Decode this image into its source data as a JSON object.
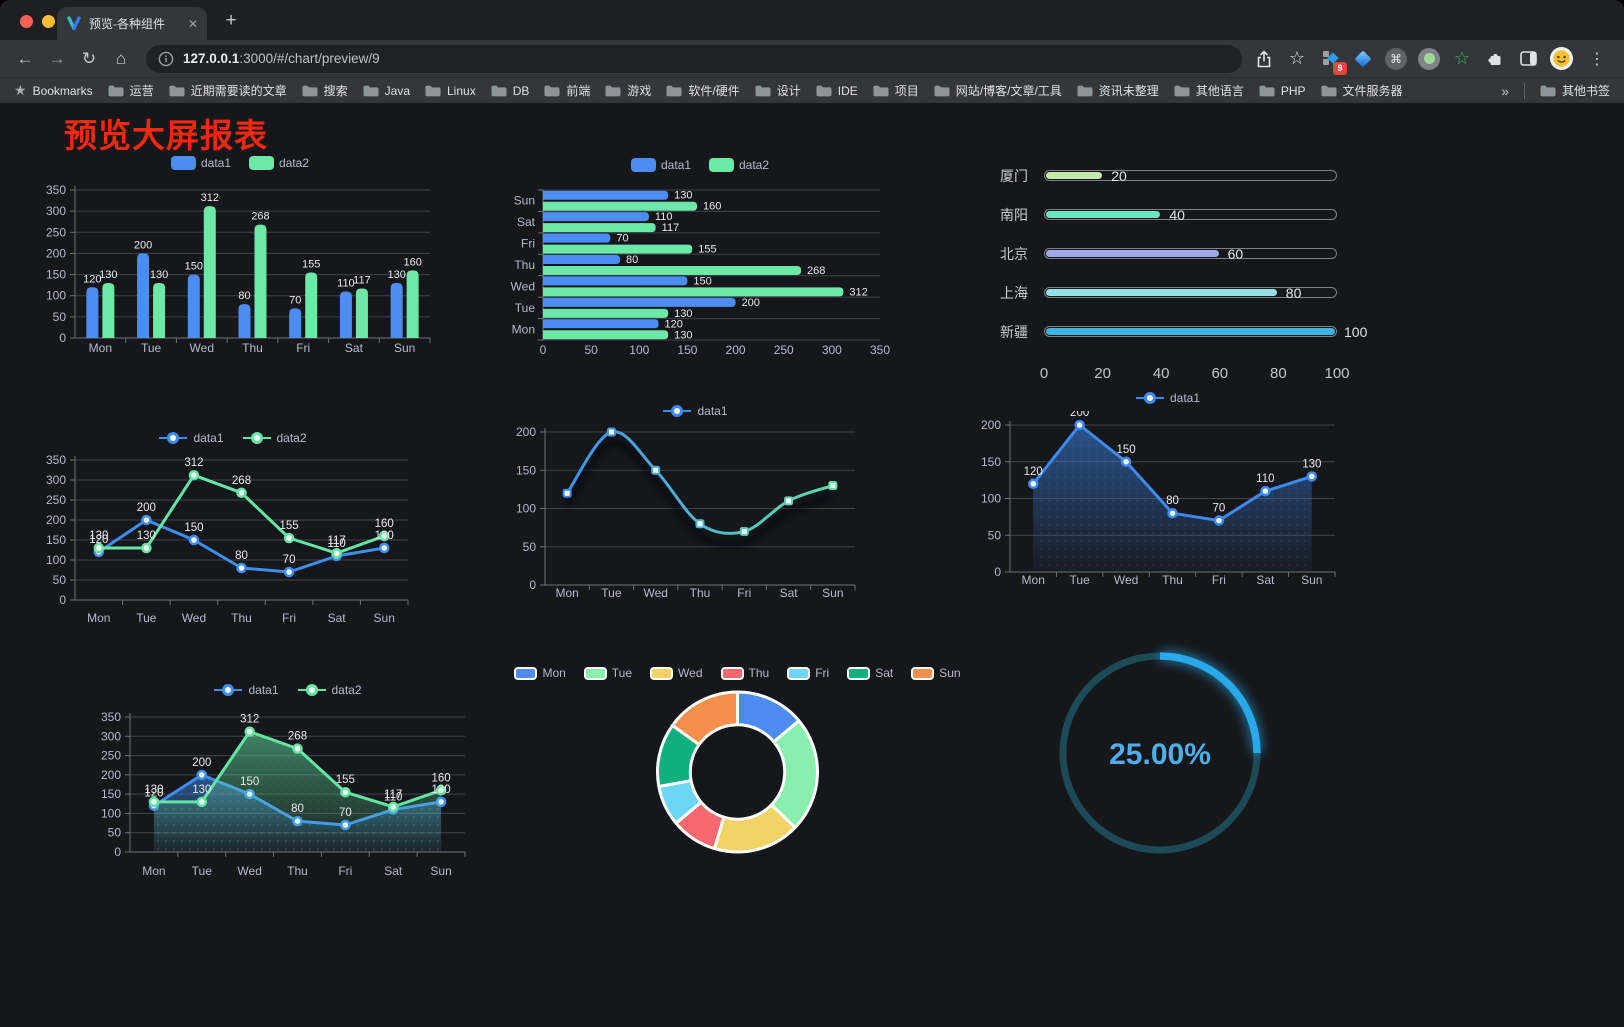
{
  "browser": {
    "tab_title": "预览-各种组件",
    "url_host": "127.0.0.1",
    "url_rest": ":3000/#/chart/preview/9",
    "bookmarks_label": "Bookmarks",
    "bookmarks": [
      "运营",
      "近期需要读的文章",
      "搜索",
      "Java",
      "Linux",
      "DB",
      "前端",
      "游戏",
      "软件/硬件",
      "设计",
      "IDE",
      "项目",
      "网站/博客/文章/工具",
      "资讯未整理",
      "其他语言",
      "PHP",
      "文件服务器"
    ],
    "other_bookmarks": "其他书签",
    "icons": {
      "close": "✕",
      "new_tab": "+",
      "back": "←",
      "forward": "→",
      "reload": "↻",
      "home": "⌂",
      "star": "☆",
      "menu": "⋮",
      "overflow": "»",
      "bookmarks_star": "★",
      "cmd": "⌘",
      "ext_badge": "9"
    }
  },
  "page": {
    "title": "预览大屏报表"
  },
  "chart_data": [
    {
      "id": "bar-grouped",
      "type": "bar",
      "categories": [
        "Mon",
        "Tue",
        "Wed",
        "Thu",
        "Fri",
        "Sat",
        "Sun"
      ],
      "series": [
        {
          "name": "data1",
          "color": "#4C8DF2",
          "values": [
            120,
            200,
            150,
            80,
            70,
            110,
            130
          ]
        },
        {
          "name": "data2",
          "color": "#6CE8A7",
          "values": [
            130,
            130,
            312,
            268,
            155,
            117,
            160
          ]
        }
      ],
      "ylim": [
        0,
        350
      ],
      "yticks": [
        0,
        50,
        100,
        150,
        200,
        250,
        300,
        350
      ],
      "labels": true,
      "legend_position": "top",
      "grid": true
    },
    {
      "id": "bar-horizontal",
      "type": "bar-horizontal",
      "categories": [
        "Mon",
        "Tue",
        "Wed",
        "Thu",
        "Fri",
        "Sat",
        "Sun"
      ],
      "categories_top_to_bottom": [
        "Sun",
        "Sat",
        "Fri",
        "Thu",
        "Wed",
        "Tue",
        "Mon"
      ],
      "series": [
        {
          "name": "data1",
          "color": "#4C8DF2",
          "values": [
            120,
            200,
            150,
            80,
            70,
            110,
            130
          ]
        },
        {
          "name": "data2",
          "color": "#6CE8A7",
          "values": [
            130,
            130,
            312,
            268,
            155,
            117,
            160
          ]
        }
      ],
      "xlim": [
        0,
        350
      ],
      "xticks": [
        0,
        50,
        100,
        150,
        200,
        250,
        300,
        350
      ],
      "labels": true,
      "legend_position": "top"
    },
    {
      "id": "progress",
      "type": "bar-progress",
      "items": [
        {
          "label": "厦门",
          "value": 20,
          "color": "#C4EBAD"
        },
        {
          "label": "南阳",
          "value": 40,
          "color": "#6BE6C1"
        },
        {
          "label": "北京",
          "value": 60,
          "color": "#A0A7E6"
        },
        {
          "label": "上海",
          "value": 80,
          "color": "#96DEE8"
        },
        {
          "label": "新疆",
          "value": 100,
          "color": "#3FB1E3"
        }
      ],
      "xlim": [
        0,
        100
      ],
      "xticks": [
        0,
        20,
        40,
        60,
        80,
        100
      ]
    },
    {
      "id": "line-multi",
      "type": "line",
      "categories": [
        "Mon",
        "Tue",
        "Wed",
        "Thu",
        "Fri",
        "Sat",
        "Sun"
      ],
      "series": [
        {
          "name": "data1",
          "color": "#3E8EF0",
          "values": [
            120,
            200,
            150,
            80,
            70,
            110,
            130
          ]
        },
        {
          "name": "data2",
          "color": "#63E6A4",
          "values": [
            130,
            130,
            312,
            268,
            155,
            117,
            160
          ]
        }
      ],
      "ylim": [
        0,
        350
      ],
      "yticks": [
        0,
        50,
        100,
        150,
        200,
        250,
        300,
        350
      ],
      "labels": true,
      "marker": "circle"
    },
    {
      "id": "line-smooth",
      "type": "line",
      "categories": [
        "Mon",
        "Tue",
        "Wed",
        "Thu",
        "Fri",
        "Sat",
        "Sun"
      ],
      "series": [
        {
          "name": "data1",
          "colorGradient": [
            "#3D8AF2",
            "#5FE3A5"
          ],
          "values": [
            120,
            200,
            150,
            80,
            70,
            110,
            130
          ]
        }
      ],
      "ylim": [
        0,
        200
      ],
      "yticks": [
        0,
        50,
        100,
        150,
        200
      ],
      "labels": false,
      "smooth": true,
      "marker": "rect",
      "shadow": true
    },
    {
      "id": "area-single",
      "type": "line",
      "categories": [
        "Mon",
        "Tue",
        "Wed",
        "Thu",
        "Fri",
        "Sat",
        "Sun"
      ],
      "series": [
        {
          "name": "data1",
          "color": "#3D8AF2",
          "area": true,
          "values": [
            120,
            200,
            150,
            80,
            70,
            110,
            130
          ]
        }
      ],
      "ylim": [
        0,
        200
      ],
      "yticks": [
        0,
        50,
        100,
        150,
        200
      ],
      "labels": true,
      "marker": "circle"
    },
    {
      "id": "area-multi",
      "type": "line",
      "categories": [
        "Mon",
        "Tue",
        "Wed",
        "Thu",
        "Fri",
        "Sat",
        "Sun"
      ],
      "series": [
        {
          "name": "data1",
          "color": "#3E8EF0",
          "area": true,
          "values": [
            120,
            200,
            150,
            80,
            70,
            110,
            130
          ]
        },
        {
          "name": "data2",
          "color": "#63E6A4",
          "area": true,
          "values": [
            130,
            130,
            312,
            268,
            155,
            117,
            160
          ]
        }
      ],
      "ylim": [
        0,
        350
      ],
      "yticks": [
        0,
        50,
        100,
        150,
        200,
        250,
        300,
        350
      ],
      "labels": true,
      "marker": "circle"
    },
    {
      "id": "donut",
      "type": "pie",
      "categories": [
        "Mon",
        "Tue",
        "Wed",
        "Thu",
        "Fri",
        "Sat",
        "Sun"
      ],
      "values": [
        120,
        200,
        150,
        80,
        70,
        110,
        130
      ],
      "colors": [
        "#4E8BF0",
        "#89EFAE",
        "#F3D365",
        "#F7696F",
        "#6FD5F7",
        "#0FB07E",
        "#F78F4C"
      ],
      "inner_radius_ratio": 0.59,
      "border_color": "#FFFFFF"
    },
    {
      "id": "gauge",
      "type": "gauge",
      "value": 25,
      "label": "25.00%",
      "color": "#28A9EB",
      "track": "#1C4A56",
      "text_color": "#4FAEEB"
    }
  ]
}
